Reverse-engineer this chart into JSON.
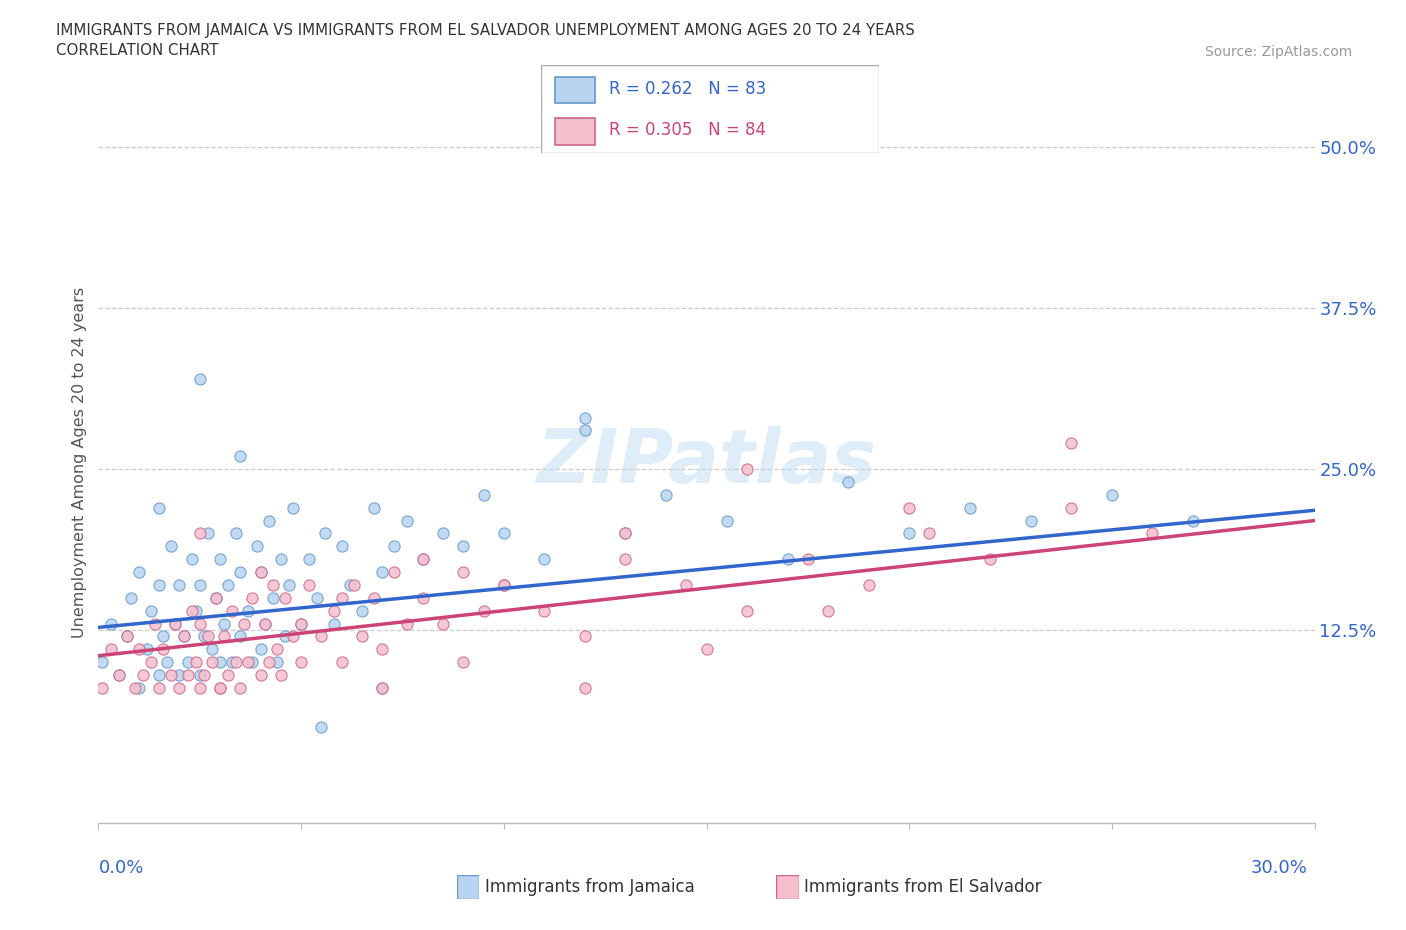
{
  "title_line1": "IMMIGRANTS FROM JAMAICA VS IMMIGRANTS FROM EL SALVADOR UNEMPLOYMENT AMONG AGES 20 TO 24 YEARS",
  "title_line2": "CORRELATION CHART",
  "source_text": "Source: ZipAtlas.com",
  "ylabel": "Unemployment Among Ages 20 to 24 years",
  "yticks": [
    0.0,
    0.125,
    0.25,
    0.375,
    0.5
  ],
  "ytick_labels": [
    "",
    "12.5%",
    "25.0%",
    "37.5%",
    "50.0%"
  ],
  "xmin": 0.0,
  "xmax": 0.3,
  "ymin": -0.025,
  "ymax": 0.535,
  "jamaica_fill": "#b8d4f0",
  "jamaica_edge": "#6699cc",
  "salvador_fill": "#f5bfce",
  "salvador_edge": "#cc6688",
  "jamaica_line_color": "#3366cc",
  "salvador_line_color": "#cc4477",
  "jamaica_R": 0.262,
  "jamaica_N": 83,
  "salvador_R": 0.305,
  "salvador_N": 84,
  "watermark": "ZIPatlas",
  "legend_jamaica": "Immigrants from Jamaica",
  "legend_salvador": "Immigrants from El Salvador",
  "jamaica_line_x0": 0.0,
  "jamaica_line_y0": 0.127,
  "jamaica_line_x1": 0.3,
  "jamaica_line_y1": 0.218,
  "salvador_line_x0": 0.0,
  "salvador_line_y0": 0.105,
  "salvador_line_x1": 0.3,
  "salvador_line_y1": 0.21,
  "jamaica_x": [
    0.001,
    0.003,
    0.005,
    0.007,
    0.008,
    0.01,
    0.01,
    0.012,
    0.013,
    0.015,
    0.015,
    0.016,
    0.017,
    0.018,
    0.019,
    0.02,
    0.02,
    0.021,
    0.022,
    0.023,
    0.024,
    0.025,
    0.025,
    0.026,
    0.027,
    0.028,
    0.029,
    0.03,
    0.03,
    0.031,
    0.032,
    0.033,
    0.034,
    0.035,
    0.035,
    0.037,
    0.038,
    0.039,
    0.04,
    0.04,
    0.041,
    0.042,
    0.043,
    0.044,
    0.045,
    0.046,
    0.047,
    0.048,
    0.05,
    0.052,
    0.054,
    0.056,
    0.058,
    0.06,
    0.062,
    0.065,
    0.068,
    0.07,
    0.073,
    0.076,
    0.08,
    0.085,
    0.09,
    0.095,
    0.1,
    0.11,
    0.12,
    0.13,
    0.14,
    0.155,
    0.17,
    0.185,
    0.2,
    0.215,
    0.23,
    0.25,
    0.27,
    0.12,
    0.055,
    0.035,
    0.07,
    0.015,
    0.025
  ],
  "jamaica_y": [
    0.1,
    0.13,
    0.09,
    0.12,
    0.15,
    0.08,
    0.17,
    0.11,
    0.14,
    0.09,
    0.16,
    0.12,
    0.1,
    0.19,
    0.13,
    0.09,
    0.16,
    0.12,
    0.1,
    0.18,
    0.14,
    0.09,
    0.16,
    0.12,
    0.2,
    0.11,
    0.15,
    0.1,
    0.18,
    0.13,
    0.16,
    0.1,
    0.2,
    0.12,
    0.17,
    0.14,
    0.1,
    0.19,
    0.11,
    0.17,
    0.13,
    0.21,
    0.15,
    0.1,
    0.18,
    0.12,
    0.16,
    0.22,
    0.13,
    0.18,
    0.15,
    0.2,
    0.13,
    0.19,
    0.16,
    0.14,
    0.22,
    0.17,
    0.19,
    0.21,
    0.18,
    0.2,
    0.19,
    0.23,
    0.2,
    0.18,
    0.29,
    0.2,
    0.23,
    0.21,
    0.18,
    0.24,
    0.2,
    0.22,
    0.21,
    0.23,
    0.21,
    0.28,
    0.05,
    0.26,
    0.08,
    0.22,
    0.32
  ],
  "salvador_x": [
    0.001,
    0.003,
    0.005,
    0.007,
    0.009,
    0.01,
    0.011,
    0.013,
    0.014,
    0.015,
    0.016,
    0.018,
    0.019,
    0.02,
    0.021,
    0.022,
    0.023,
    0.024,
    0.025,
    0.025,
    0.026,
    0.027,
    0.028,
    0.029,
    0.03,
    0.031,
    0.032,
    0.033,
    0.034,
    0.035,
    0.036,
    0.037,
    0.038,
    0.04,
    0.041,
    0.042,
    0.043,
    0.044,
    0.045,
    0.046,
    0.048,
    0.05,
    0.052,
    0.055,
    0.058,
    0.06,
    0.063,
    0.065,
    0.068,
    0.07,
    0.073,
    0.076,
    0.08,
    0.085,
    0.09,
    0.095,
    0.1,
    0.11,
    0.12,
    0.13,
    0.145,
    0.16,
    0.175,
    0.19,
    0.205,
    0.22,
    0.24,
    0.26,
    0.025,
    0.04,
    0.06,
    0.08,
    0.1,
    0.13,
    0.16,
    0.2,
    0.24,
    0.18,
    0.15,
    0.12,
    0.09,
    0.07,
    0.05,
    0.03
  ],
  "salvador_y": [
    0.08,
    0.11,
    0.09,
    0.12,
    0.08,
    0.11,
    0.09,
    0.1,
    0.13,
    0.08,
    0.11,
    0.09,
    0.13,
    0.08,
    0.12,
    0.09,
    0.14,
    0.1,
    0.08,
    0.13,
    0.09,
    0.12,
    0.1,
    0.15,
    0.08,
    0.12,
    0.09,
    0.14,
    0.1,
    0.08,
    0.13,
    0.1,
    0.15,
    0.09,
    0.13,
    0.1,
    0.16,
    0.11,
    0.09,
    0.15,
    0.12,
    0.1,
    0.16,
    0.12,
    0.14,
    0.1,
    0.16,
    0.12,
    0.15,
    0.11,
    0.17,
    0.13,
    0.15,
    0.13,
    0.17,
    0.14,
    0.16,
    0.14,
    0.12,
    0.18,
    0.16,
    0.14,
    0.18,
    0.16,
    0.2,
    0.18,
    0.22,
    0.2,
    0.2,
    0.17,
    0.15,
    0.18,
    0.16,
    0.2,
    0.25,
    0.22,
    0.27,
    0.14,
    0.11,
    0.08,
    0.1,
    0.08,
    0.13,
    0.08
  ]
}
